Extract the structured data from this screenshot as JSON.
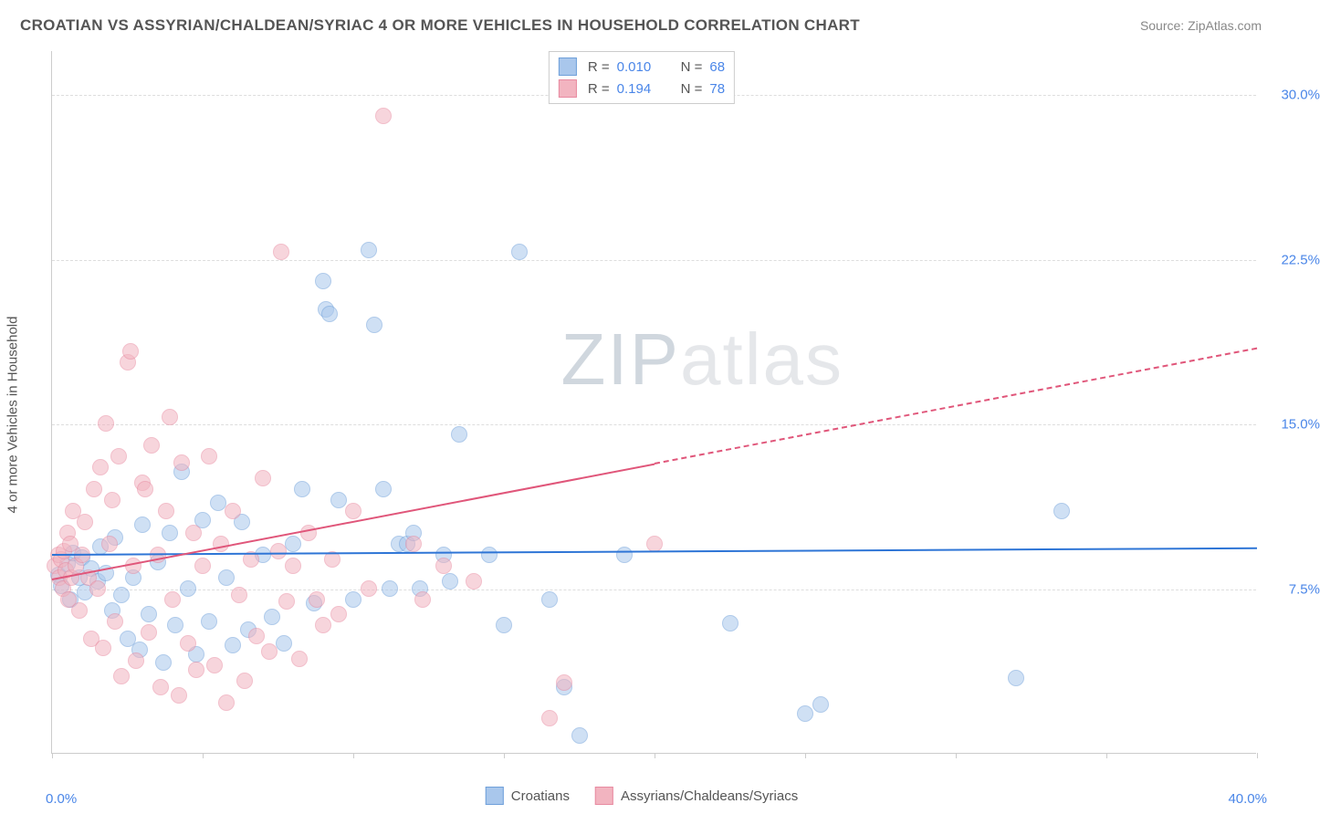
{
  "title": "CROATIAN VS ASSYRIAN/CHALDEAN/SYRIAC 4 OR MORE VEHICLES IN HOUSEHOLD CORRELATION CHART",
  "source": "Source: ZipAtlas.com",
  "ylabel": "4 or more Vehicles in Household",
  "watermark_a": "ZIP",
  "watermark_b": "atlas",
  "chart": {
    "type": "scatter",
    "background_color": "#ffffff",
    "grid_color": "#dddddd",
    "axis_color": "#cccccc",
    "xlim": [
      0,
      40
    ],
    "ylim": [
      0,
      32
    ],
    "xticks": [
      0,
      5,
      10,
      15,
      20,
      25,
      30,
      35,
      40
    ],
    "ytick_labels": [
      {
        "v": 7.5,
        "label": "7.5%"
      },
      {
        "v": 15.0,
        "label": "15.0%"
      },
      {
        "v": 22.5,
        "label": "22.5%"
      },
      {
        "v": 30.0,
        "label": "30.0%"
      }
    ],
    "xaxis_min_label": "0.0%",
    "xaxis_max_label": "40.0%",
    "point_radius": 9,
    "point_opacity": 0.55,
    "series": [
      {
        "name": "Croatians",
        "fill": "#a9c7ec",
        "stroke": "#6fa0da",
        "line_color": "#2e75d6",
        "R": "0.010",
        "N": "68",
        "trend": {
          "x0": 0,
          "y0": 9.1,
          "x1": 40,
          "y1": 9.4,
          "solid_until_x": 40
        },
        "points": [
          [
            0.2,
            8.1
          ],
          [
            0.3,
            7.6
          ],
          [
            0.5,
            8.6
          ],
          [
            0.6,
            7.0
          ],
          [
            0.7,
            9.1
          ],
          [
            0.9,
            8.0
          ],
          [
            1.0,
            8.9
          ],
          [
            1.1,
            7.3
          ],
          [
            1.3,
            8.4
          ],
          [
            1.5,
            7.8
          ],
          [
            1.6,
            9.4
          ],
          [
            1.8,
            8.2
          ],
          [
            2.0,
            6.5
          ],
          [
            2.1,
            9.8
          ],
          [
            2.3,
            7.2
          ],
          [
            2.5,
            5.2
          ],
          [
            2.7,
            8.0
          ],
          [
            2.9,
            4.7
          ],
          [
            3.0,
            10.4
          ],
          [
            3.2,
            6.3
          ],
          [
            3.5,
            8.7
          ],
          [
            3.7,
            4.1
          ],
          [
            3.9,
            10.0
          ],
          [
            4.1,
            5.8
          ],
          [
            4.3,
            12.8
          ],
          [
            4.5,
            7.5
          ],
          [
            4.8,
            4.5
          ],
          [
            5.0,
            10.6
          ],
          [
            5.2,
            6.0
          ],
          [
            5.5,
            11.4
          ],
          [
            5.8,
            8.0
          ],
          [
            6.0,
            4.9
          ],
          [
            6.3,
            10.5
          ],
          [
            6.5,
            5.6
          ],
          [
            7.0,
            9.0
          ],
          [
            7.3,
            6.2
          ],
          [
            7.7,
            5.0
          ],
          [
            8.0,
            9.5
          ],
          [
            8.3,
            12.0
          ],
          [
            8.7,
            6.8
          ],
          [
            9.0,
            21.5
          ],
          [
            9.1,
            20.2
          ],
          [
            9.2,
            20.0
          ],
          [
            9.5,
            11.5
          ],
          [
            10.0,
            7.0
          ],
          [
            10.5,
            22.9
          ],
          [
            10.7,
            19.5
          ],
          [
            11.0,
            12.0
          ],
          [
            11.2,
            7.5
          ],
          [
            11.5,
            9.5
          ],
          [
            11.8,
            9.5
          ],
          [
            12.0,
            10.0
          ],
          [
            12.2,
            7.5
          ],
          [
            13.0,
            9.0
          ],
          [
            13.2,
            7.8
          ],
          [
            13.5,
            14.5
          ],
          [
            14.5,
            9.0
          ],
          [
            15.0,
            5.8
          ],
          [
            15.5,
            22.8
          ],
          [
            16.5,
            7.0
          ],
          [
            17.0,
            3.0
          ],
          [
            17.5,
            0.8
          ],
          [
            19.0,
            9.0
          ],
          [
            22.5,
            5.9
          ],
          [
            25.0,
            1.8
          ],
          [
            25.5,
            2.2
          ],
          [
            32.0,
            3.4
          ],
          [
            33.5,
            11.0
          ]
        ]
      },
      {
        "name": "Assyrians/Chaldeans/Syriacs",
        "fill": "#f2b4c0",
        "stroke": "#e88aa0",
        "line_color": "#e0567a",
        "R": "0.194",
        "N": "78",
        "trend": {
          "x0": 0,
          "y0": 8.0,
          "x1": 40,
          "y1": 18.5,
          "solid_until_x": 20
        },
        "points": [
          [
            0.1,
            8.5
          ],
          [
            0.2,
            9.0
          ],
          [
            0.25,
            8.0
          ],
          [
            0.3,
            8.8
          ],
          [
            0.35,
            7.5
          ],
          [
            0.4,
            9.2
          ],
          [
            0.45,
            8.3
          ],
          [
            0.5,
            10.0
          ],
          [
            0.55,
            7.0
          ],
          [
            0.6,
            9.5
          ],
          [
            0.65,
            8.0
          ],
          [
            0.7,
            11.0
          ],
          [
            0.8,
            8.5
          ],
          [
            0.9,
            6.5
          ],
          [
            1.0,
            9.0
          ],
          [
            1.1,
            10.5
          ],
          [
            1.2,
            8.0
          ],
          [
            1.3,
            5.2
          ],
          [
            1.4,
            12.0
          ],
          [
            1.5,
            7.5
          ],
          [
            1.6,
            13.0
          ],
          [
            1.7,
            4.8
          ],
          [
            1.8,
            15.0
          ],
          [
            1.9,
            9.5
          ],
          [
            2.0,
            11.5
          ],
          [
            2.1,
            6.0
          ],
          [
            2.2,
            13.5
          ],
          [
            2.3,
            3.5
          ],
          [
            2.5,
            17.8
          ],
          [
            2.6,
            18.3
          ],
          [
            2.7,
            8.5
          ],
          [
            2.8,
            4.2
          ],
          [
            3.0,
            12.3
          ],
          [
            3.1,
            12.0
          ],
          [
            3.2,
            5.5
          ],
          [
            3.3,
            14.0
          ],
          [
            3.5,
            9.0
          ],
          [
            3.6,
            3.0
          ],
          [
            3.8,
            11.0
          ],
          [
            3.9,
            15.3
          ],
          [
            4.0,
            7.0
          ],
          [
            4.2,
            2.6
          ],
          [
            4.3,
            13.2
          ],
          [
            4.5,
            5.0
          ],
          [
            4.7,
            10.0
          ],
          [
            4.8,
            3.8
          ],
          [
            5.0,
            8.5
          ],
          [
            5.2,
            13.5
          ],
          [
            5.4,
            4.0
          ],
          [
            5.6,
            9.5
          ],
          [
            5.8,
            2.3
          ],
          [
            6.0,
            11.0
          ],
          [
            6.2,
            7.2
          ],
          [
            6.4,
            3.3
          ],
          [
            6.6,
            8.8
          ],
          [
            6.8,
            5.3
          ],
          [
            7.0,
            12.5
          ],
          [
            7.2,
            4.6
          ],
          [
            7.5,
            9.2
          ],
          [
            7.6,
            22.8
          ],
          [
            7.8,
            6.9
          ],
          [
            8.0,
            8.5
          ],
          [
            8.2,
            4.3
          ],
          [
            8.5,
            10.0
          ],
          [
            8.8,
            7.0
          ],
          [
            9.0,
            5.8
          ],
          [
            9.3,
            8.8
          ],
          [
            9.5,
            6.3
          ],
          [
            10.0,
            11.0
          ],
          [
            10.5,
            7.5
          ],
          [
            11.0,
            29.0
          ],
          [
            12.0,
            9.5
          ],
          [
            12.3,
            7.0
          ],
          [
            13.0,
            8.5
          ],
          [
            14.0,
            7.8
          ],
          [
            16.5,
            1.6
          ],
          [
            17.0,
            3.2
          ],
          [
            20.0,
            9.5
          ]
        ]
      }
    ]
  },
  "legend_top_label_R": "R =",
  "legend_top_label_N": "N ="
}
